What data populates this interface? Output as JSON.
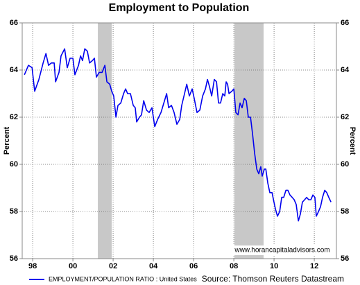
{
  "chart_data": {
    "type": "line",
    "title": "Employment to Population",
    "y_label": "Percent",
    "y2_label": "Percent",
    "source": "Source: Thomson Reuters Datastream",
    "watermark": "www.horancapitaladvisors.com",
    "xlim": [
      1997.48,
      2013.1
    ],
    "xticks": [
      {
        "value": 1998,
        "label": "98"
      },
      {
        "value": 2000,
        "label": "00"
      },
      {
        "value": 2002,
        "label": "02"
      },
      {
        "value": 2004,
        "label": "04"
      },
      {
        "value": 2006,
        "label": "06"
      },
      {
        "value": 2008,
        "label": "08"
      },
      {
        "value": 2010,
        "label": "10"
      },
      {
        "value": 2012,
        "label": "12"
      }
    ],
    "ylim": [
      56,
      66
    ],
    "yticks": [
      56,
      58,
      60,
      62,
      64,
      66
    ],
    "y2lim": [
      56,
      66
    ],
    "y2ticks": [
      56,
      58,
      60,
      62,
      64,
      66
    ],
    "grid": true,
    "legend": "bottom-left",
    "recession_color": "#c8c8c8",
    "recessions": [
      [
        2001.24,
        2001.93
      ],
      [
        2008.03,
        2009.48
      ]
    ],
    "x": [
      1997.59,
      1997.79,
      1997.97,
      1998.1,
      1998.31,
      1998.52,
      1998.66,
      1998.79,
      1998.93,
      1999.07,
      1999.14,
      1999.31,
      1999.41,
      1999.59,
      1999.72,
      1999.86,
      2000.0,
      2000.1,
      2000.28,
      2000.38,
      2000.48,
      2000.59,
      2000.72,
      2000.83,
      2000.97,
      2001.07,
      2001.17,
      2001.31,
      2001.45,
      2001.59,
      2001.69,
      2001.83,
      2001.93,
      2002.03,
      2002.14,
      2002.24,
      2002.38,
      2002.52,
      2002.62,
      2002.72,
      2002.86,
      2003.0,
      2003.1,
      2003.17,
      2003.31,
      2003.41,
      2003.52,
      2003.66,
      2003.79,
      2003.93,
      2004.07,
      2004.21,
      2004.38,
      2004.52,
      2004.66,
      2004.76,
      2004.9,
      2005.03,
      2005.17,
      2005.31,
      2005.41,
      2005.55,
      2005.66,
      2005.79,
      2005.93,
      2006.03,
      2006.17,
      2006.31,
      2006.45,
      2006.59,
      2006.69,
      2006.79,
      2006.9,
      2007.03,
      2007.14,
      2007.24,
      2007.34,
      2007.45,
      2007.55,
      2007.62,
      2007.69,
      2007.76,
      2007.9,
      2008.0,
      2008.1,
      2008.21,
      2008.31,
      2008.41,
      2008.52,
      2008.62,
      2008.72,
      2008.83,
      2008.93,
      2009.03,
      2009.14,
      2009.24,
      2009.34,
      2009.41,
      2009.52,
      2009.59,
      2009.69,
      2009.79,
      2009.9,
      2009.97,
      2010.07,
      2010.17,
      2010.28,
      2010.38,
      2010.48,
      2010.59,
      2010.69,
      2010.79,
      2010.9,
      2011.0,
      2011.1,
      2011.21,
      2011.31,
      2011.41,
      2011.52,
      2011.62,
      2011.72,
      2011.83,
      2011.93,
      2012.03,
      2012.1,
      2012.21,
      2012.31,
      2012.41,
      2012.52,
      2012.62,
      2012.72,
      2012.83
    ],
    "series": [
      {
        "name": "EMPLOYMENT/POPULATION RATIO : United States",
        "color": "#0000ee",
        "values": [
          63.8,
          64.2,
          64.1,
          63.1,
          63.6,
          64.3,
          64.7,
          64.2,
          64.3,
          64.3,
          63.5,
          63.9,
          64.6,
          64.9,
          64.1,
          64.5,
          64.5,
          63.8,
          64.2,
          64.6,
          64.4,
          64.9,
          64.8,
          64.3,
          64.4,
          64.5,
          63.7,
          63.9,
          63.9,
          64.2,
          63.5,
          63.4,
          63.1,
          62.9,
          62.0,
          62.5,
          62.6,
          63.0,
          63.2,
          63.0,
          63.0,
          62.5,
          62.4,
          61.8,
          62.0,
          62.1,
          62.7,
          62.3,
          62.2,
          62.4,
          61.6,
          61.9,
          62.2,
          62.6,
          63.0,
          62.4,
          62.5,
          62.2,
          61.7,
          61.9,
          62.5,
          63.0,
          63.4,
          62.9,
          63.2,
          62.8,
          62.2,
          62.3,
          62.9,
          63.2,
          63.6,
          63.3,
          62.9,
          63.6,
          63.5,
          62.6,
          62.6,
          63.0,
          62.9,
          63.5,
          63.4,
          63.0,
          63.1,
          63.2,
          62.2,
          62.1,
          62.6,
          62.4,
          62.8,
          62.7,
          62.0,
          62.0,
          61.3,
          60.5,
          59.8,
          59.6,
          59.9,
          59.5,
          59.8,
          59.8,
          59.2,
          58.8,
          58.8,
          58.5,
          58.1,
          57.8,
          58.0,
          58.6,
          58.6,
          58.9,
          58.9,
          58.7,
          58.6,
          58.5,
          58.3,
          57.6,
          57.9,
          58.4,
          58.5,
          58.6,
          58.5,
          58.5,
          58.7,
          58.6,
          57.8,
          58.0,
          58.2,
          58.6,
          58.9,
          58.8,
          58.6,
          58.4
        ]
      }
    ]
  }
}
